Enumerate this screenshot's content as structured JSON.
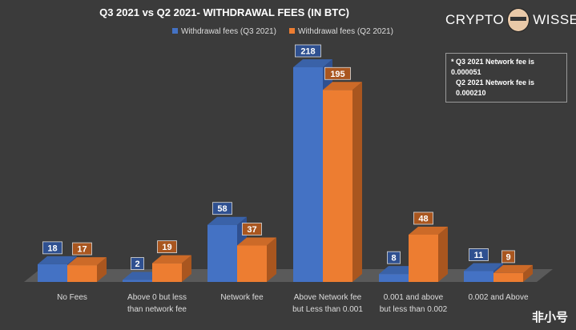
{
  "chart_data": {
    "type": "bar",
    "title": "Q3 2021 vs Q2 2021- WITHDRAWAL FEES (IN BTC)",
    "categories": [
      [
        "No Fees"
      ],
      [
        "Above 0 but less",
        "than network fee"
      ],
      [
        "Network fee"
      ],
      [
        "Above Network fee",
        "but Less than 0.001"
      ],
      [
        "0.001 and above",
        "but less than 0.002"
      ],
      [
        "0.002 and Above"
      ]
    ],
    "series": [
      {
        "name": "Withdrawal fees (Q3 2021)",
        "color": "#4472c4",
        "values": [
          18,
          2,
          58,
          218,
          8,
          11
        ]
      },
      {
        "name": "Withdrawal fees (Q2 2021)",
        "color": "#ed7d31",
        "values": [
          17,
          19,
          37,
          195,
          48,
          9
        ]
      }
    ],
    "legend": "top",
    "grid": false,
    "style": "3d-clustered-column"
  },
  "note": [
    "* Q3 2021 Network fee is 0.000051",
    "Q2 2021 Network fee is 0.000210"
  ],
  "logo": {
    "left": "CRYPTO",
    "right": "WISSER"
  },
  "watermark": "非小号"
}
